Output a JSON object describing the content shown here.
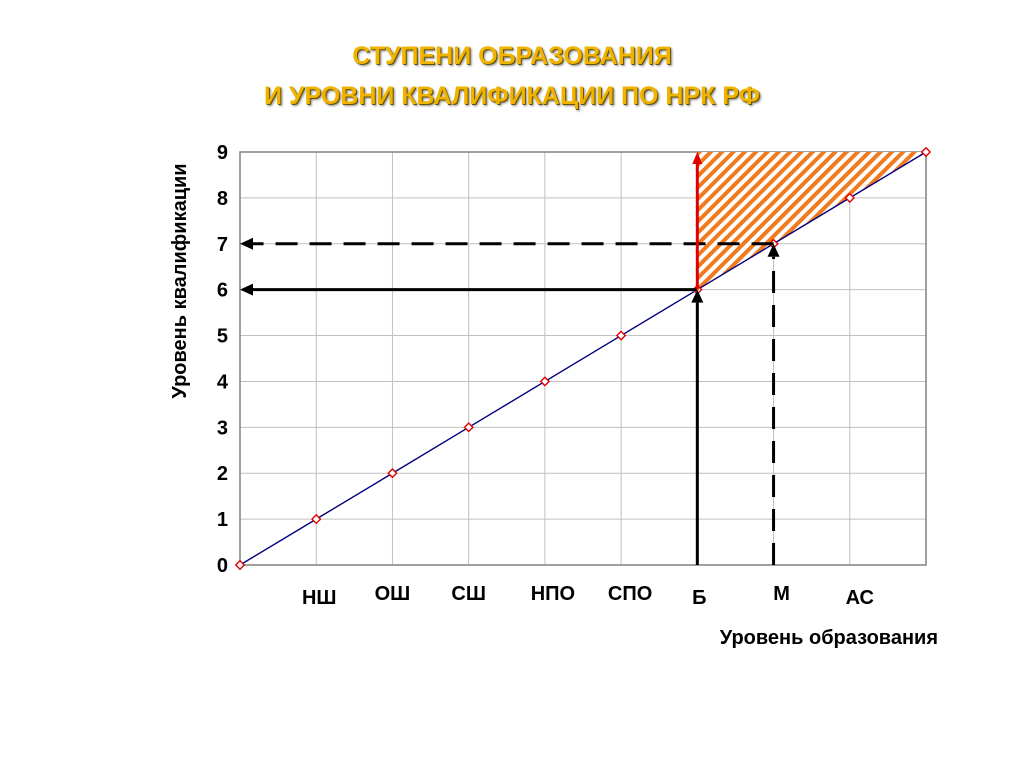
{
  "title": {
    "line1": "СТУПЕНИ ОБРАЗОВАНИЯ",
    "line2": "И УРОВНИ КВАЛИФИКАЦИИ ПО НРК РФ"
  },
  "colors": {
    "title": "#f0b400",
    "line": "#00007f",
    "marker": "#e00000",
    "hatch": "#f07a1e",
    "redArrow": "#e00000",
    "grid": "#c0c0c0",
    "arrows": "#000000"
  },
  "chart_data": {
    "type": "line",
    "title": "",
    "xlabel": "Уровень образования",
    "ylabel": "Уровень квалификации",
    "categories": [
      "",
      "НШ",
      "ОШ",
      "СШ",
      "НПО",
      "СПО",
      "Б",
      "М",
      "АС",
      ""
    ],
    "x": [
      0,
      1,
      2,
      3,
      4,
      5,
      6,
      7,
      8,
      9
    ],
    "y": [
      0,
      1,
      2,
      3,
      4,
      5,
      6,
      7,
      8,
      9
    ],
    "y_ticks": [
      "0",
      "1",
      "2",
      "3",
      "4",
      "5",
      "6",
      "7",
      "8",
      "9"
    ],
    "xlim": [
      0,
      9
    ],
    "ylim": [
      0,
      9
    ],
    "grid": true,
    "legend": "none",
    "annotations": [
      {
        "kind": "solid-arrow",
        "from_x": 6,
        "from_y": 0,
        "to_x": 6,
        "to_y": 6,
        "then_to_x": 0,
        "then_to_y": 6
      },
      {
        "kind": "dashed-arrow",
        "from_x": 7,
        "from_y": 0,
        "to_x": 7,
        "to_y": 7,
        "then_to_x": 0,
        "then_to_y": 7
      },
      {
        "kind": "red-arrow",
        "from_x": 6,
        "from_y": 6,
        "to_x": 6,
        "to_y": 9
      },
      {
        "kind": "hatched-region",
        "vertices": [
          [
            6,
            6
          ],
          [
            6,
            9
          ],
          [
            9,
            9
          ]
        ]
      }
    ]
  }
}
